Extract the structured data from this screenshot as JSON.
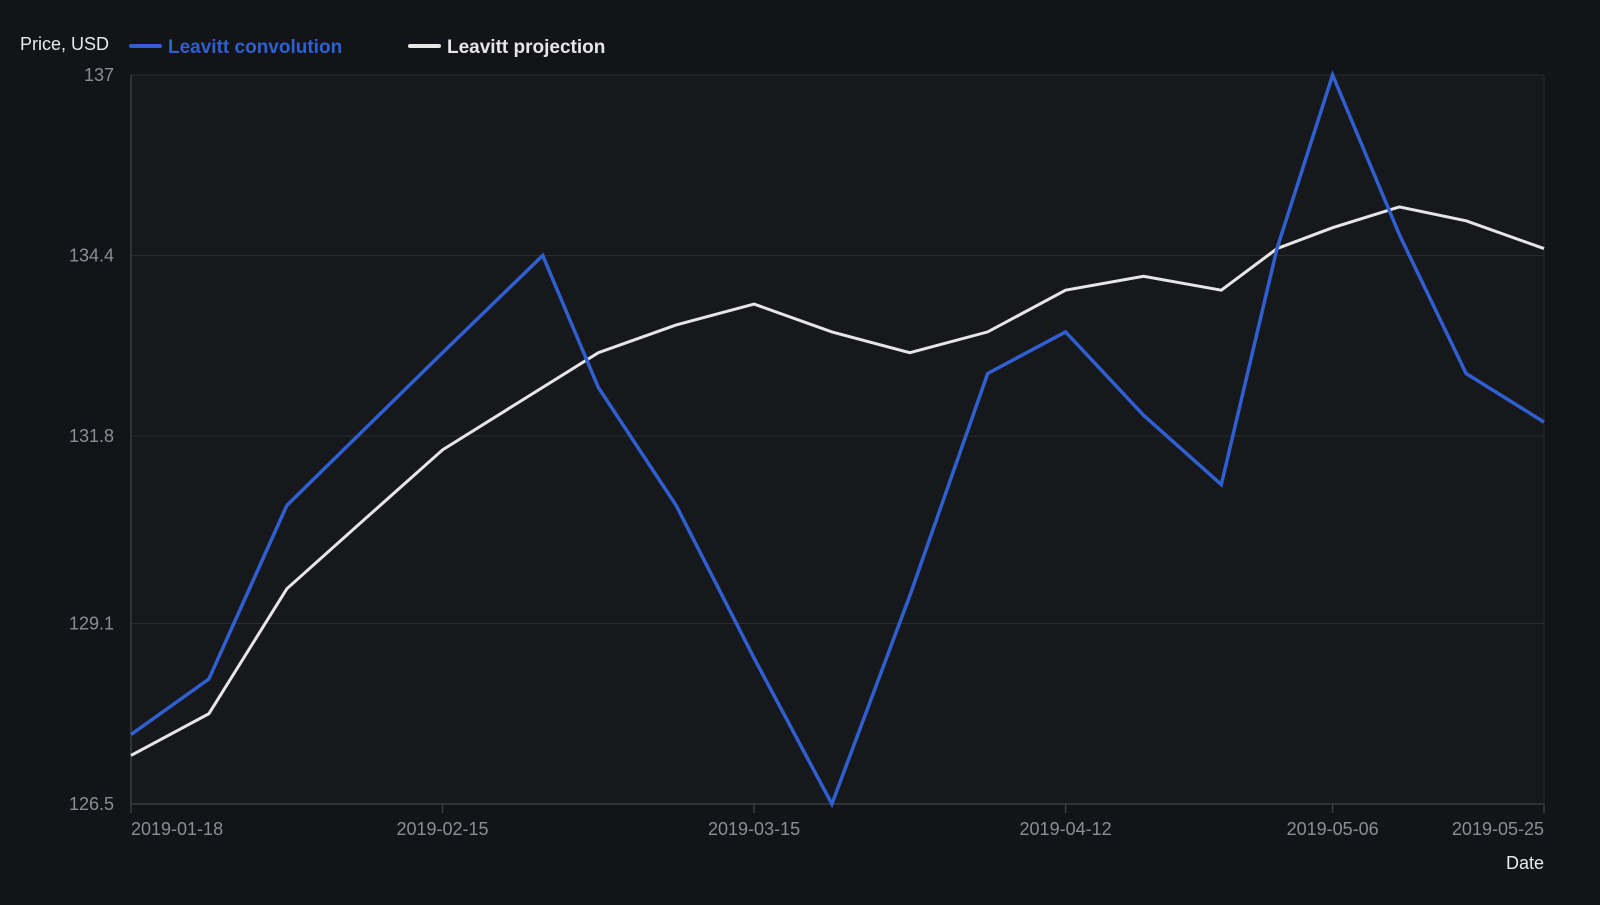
{
  "chart_data": {
    "type": "line",
    "ylabel": "Price, USD",
    "xlabel": "Date",
    "ylim": [
      126.5,
      137
    ],
    "y_ticks": [
      "126.5",
      "129.1",
      "131.8",
      "134.4",
      "137"
    ],
    "x_ticks": [
      "2019-01-18",
      "2019-02-15",
      "2019-03-15",
      "2019-04-12",
      "2019-05-06",
      "2019-05-25"
    ],
    "grid": "horizontal",
    "legend_position": "top-left",
    "x": [
      "2019-01-18",
      "2019-01-25",
      "2019-02-01",
      "2019-02-08",
      "2019-02-15",
      "2019-02-24",
      "2019-03-01",
      "2019-03-08",
      "2019-03-15",
      "2019-03-22",
      "2019-03-29",
      "2019-04-05",
      "2019-04-12",
      "2019-04-19",
      "2019-04-26",
      "2019-05-01",
      "2019-05-06",
      "2019-05-12",
      "2019-05-18",
      "2019-05-25"
    ],
    "series": [
      {
        "name": "Leavitt convolution",
        "color": "#2f5fd0",
        "values": [
          127.5,
          128.3,
          130.8,
          131.9,
          133.0,
          134.4,
          132.5,
          130.8,
          128.6,
          126.5,
          129.5,
          132.7,
          133.3,
          132.1,
          131.1,
          134.5,
          137.0,
          134.7,
          132.7,
          132.0
        ]
      },
      {
        "name": "Leavitt projection",
        "color": "#e6e6e6",
        "values": [
          127.2,
          127.8,
          129.6,
          130.6,
          131.6,
          132.5,
          133.0,
          133.4,
          133.7,
          133.3,
          133.0,
          133.3,
          133.9,
          134.1,
          133.9,
          134.5,
          134.8,
          135.1,
          134.9,
          134.5
        ]
      }
    ]
  }
}
